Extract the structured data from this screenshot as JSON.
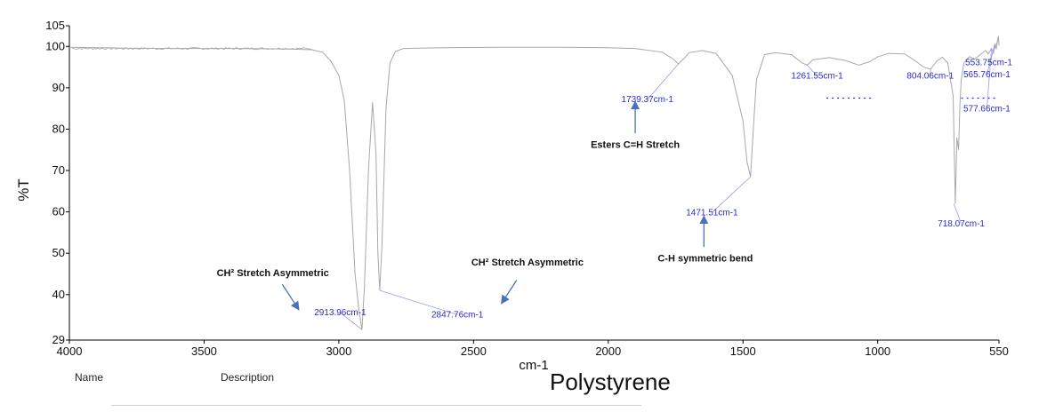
{
  "chart_data": {
    "type": "line",
    "title": "Polystyrene",
    "xlabel": "cm-1",
    "ylabel": "%T",
    "xlim": [
      4000,
      550
    ],
    "ylim": [
      29,
      105
    ],
    "grid": false,
    "x_ticks": [
      4000,
      3500,
      3000,
      2500,
      2000,
      1500,
      1000,
      550
    ],
    "y_ticks": [
      29,
      40,
      50,
      60,
      70,
      80,
      90,
      100,
      105
    ],
    "colors": {
      "line": "#a8a8a8",
      "peak_label": "#2a2ad0",
      "arrow": "#4a72b8",
      "leader": "#9a9ae0",
      "axis": "#000000"
    },
    "series": [
      {
        "values_x": [
          4000,
          3800,
          3600,
          3400,
          3200,
          3100,
          3060,
          3030,
          3000,
          2980,
          2960,
          2940,
          2925,
          2914,
          2905,
          2890,
          2875,
          2862,
          2855,
          2848,
          2840,
          2825,
          2810,
          2790,
          2760,
          2700,
          2600,
          2400,
          2200,
          2000,
          1900,
          1800,
          1760,
          1740,
          1720,
          1700,
          1650,
          1600,
          1540,
          1500,
          1485,
          1472,
          1460,
          1450,
          1420,
          1380,
          1320,
          1280,
          1262,
          1240,
          1180,
          1120,
          1070,
          1030,
          1000,
          960,
          900,
          860,
          830,
          804,
          780,
          760,
          740,
          720,
          712,
          706,
          700,
          695,
          690,
          680,
          660,
          640,
          620,
          600,
          590,
          578,
          570,
          566,
          560,
          555,
          552,
          550
        ],
        "values_y": [
          99.8,
          99.6,
          99.5,
          99.5,
          99.4,
          99.2,
          98.6,
          96.5,
          93,
          87,
          70,
          45,
          36,
          31.5,
          42,
          70,
          86.5,
          74,
          50,
          41,
          52,
          85,
          96,
          98.8,
          99.5,
          99.6,
          99.7,
          99.8,
          99.8,
          99.7,
          99.5,
          98.6,
          97,
          95.8,
          97,
          98.5,
          99,
          98.3,
          93,
          82,
          72,
          68.5,
          82,
          92,
          98,
          98.5,
          98,
          96,
          95.5,
          96.8,
          97.3,
          96.6,
          95.5,
          96.3,
          97.5,
          98.3,
          98.2,
          96.5,
          95,
          94.5,
          96.5,
          97.4,
          96,
          88,
          62,
          78,
          75,
          86,
          92,
          96,
          97.5,
          97,
          98,
          99,
          98.2,
          99.5,
          98.5,
          100.5,
          99.5,
          101.5,
          102.5,
          100.2
        ]
      }
    ],
    "peak_labels": [
      {
        "x": 2913.96,
        "y": 31.5,
        "text": "2913.96cm-1",
        "label_x": 2995,
        "label_y": 35
      },
      {
        "x": 2847.76,
        "y": 41,
        "text": "2847.76cm-1",
        "label_x": 2560,
        "label_y": 34.5
      },
      {
        "x": 1739.37,
        "y": 95.8,
        "text": "1739.37cm-1",
        "label_x": 1855,
        "label_y": 86.5
      },
      {
        "x": 1471.51,
        "y": 68.5,
        "text": "1471.51cm-1",
        "label_x": 1615,
        "label_y": 59.2
      },
      {
        "x": 1261.55,
        "y": 95.5,
        "text": "1261.55cm-1",
        "label_x": 1225,
        "label_y": 92.2
      },
      {
        "x": 804.06,
        "y": 94.5,
        "text": "804.06cm-1",
        "label_x": 805,
        "label_y": 92.2
      },
      {
        "x": 718.07,
        "y": 62,
        "text": "718.07cm-1",
        "label_x": 690,
        "label_y": 56.5
      },
      {
        "x": 553.75,
        "y": 101.5,
        "text": "553.75cm-1",
        "label_x": 588,
        "label_y": 95.4
      },
      {
        "x": 565.76,
        "y": 100.5,
        "text": "565.76cm-1",
        "label_x": 595,
        "label_y": 92.5
      },
      {
        "x": 577.66,
        "y": 99.5,
        "text": "577.66cm-1",
        "label_x": 595,
        "label_y": 84.3
      }
    ],
    "annotations": [
      {
        "text": "CH² Stretch Asymmetric",
        "text_x": 3245,
        "text_y": 44.5,
        "arrow_from": [
          3210,
          42.5
        ],
        "arrow_to": [
          3150,
          36.5
        ]
      },
      {
        "text": "CH² Stretch Asymmetric",
        "text_x": 2300,
        "text_y": 47,
        "arrow_from": [
          2340,
          43.5
        ],
        "arrow_to": [
          2395,
          38
        ]
      },
      {
        "text": "Esters C=H Stretch",
        "text_x": 1900,
        "text_y": 75.5,
        "arrow_from": [
          1900,
          79
        ],
        "arrow_to": [
          1900,
          86.5
        ]
      },
      {
        "text": "C-H symmetric bend",
        "text_x": 1640,
        "text_y": 48,
        "arrow_from": [
          1645,
          51.5
        ],
        "arrow_to": [
          1645,
          58.8
        ]
      }
    ]
  },
  "footer": {
    "name_label": "Name",
    "description_label": "Description"
  }
}
